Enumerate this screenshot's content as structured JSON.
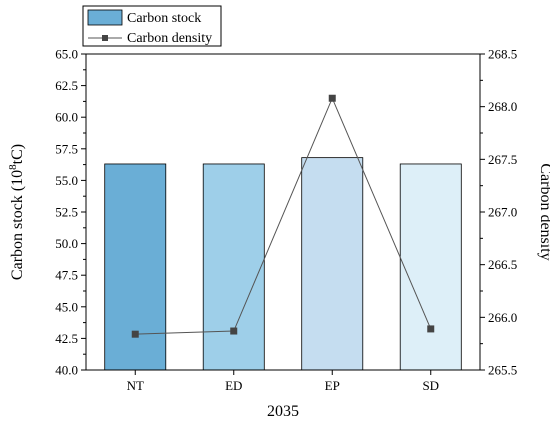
{
  "chart_data": {
    "type": "bar",
    "categories": [
      "NT",
      "ED",
      "EP",
      "SD"
    ],
    "xlabel": "2035",
    "series": [
      {
        "name": "Carbon stock",
        "kind": "bar",
        "axis": "left",
        "values": [
          56.3,
          56.3,
          56.8,
          56.3
        ],
        "colors": [
          "#6aaed6",
          "#9ecfe9",
          "#c5ddf0",
          "#ddeff8"
        ]
      },
      {
        "name": "Carbon density",
        "kind": "line",
        "axis": "right",
        "values": [
          265.84,
          265.87,
          268.08,
          265.89
        ],
        "color": "#555555"
      }
    ],
    "y_left": {
      "label_main": "Carbon stock (10",
      "label_sup": "8",
      "label_end": "tC)",
      "lim": [
        40.0,
        65.0
      ],
      "ticks": [
        "40.0",
        "42.5",
        "45.0",
        "47.5",
        "50.0",
        "52.5",
        "55.0",
        "57.5",
        "60.0",
        "62.5",
        "65.0"
      ]
    },
    "y_right": {
      "label": "Carbon density",
      "lim": [
        265.5,
        268.5
      ],
      "ticks": [
        "265.5",
        "266.0",
        "266.5",
        "267.0",
        "267.5",
        "268.0",
        "268.5"
      ]
    },
    "legend": "top-left",
    "grid": false
  }
}
